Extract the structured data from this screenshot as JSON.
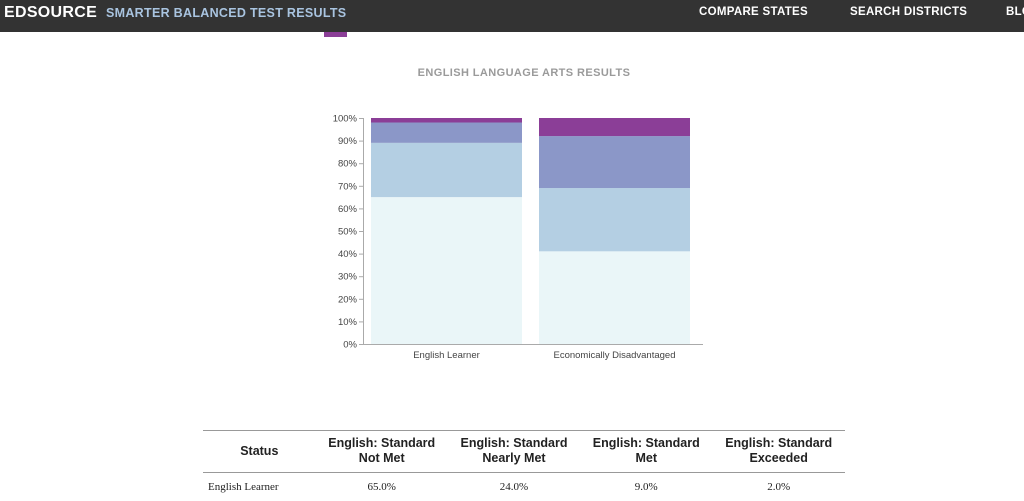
{
  "header": {
    "brand": "EDSOURCE",
    "subtitle": "SMARTER BALANCED TEST RESULTS",
    "nav": [
      "COMPARE STATES",
      "SEARCH DISTRICTS",
      "BLO"
    ]
  },
  "chart_title": "ENGLISH LANGUAGE ARTS RESULTS",
  "colors": {
    "topbar": "#333333",
    "not_met": "#eaf6f8",
    "nearly_met": "#b4cfe3",
    "met": "#8b97c8",
    "exceeded": "#8b3e97"
  },
  "chart_data": {
    "type": "bar",
    "stacked": true,
    "categories": [
      "English Learner",
      "Economically Disadvantaged"
    ],
    "series": [
      {
        "name": "English: Standard Not Met",
        "values": [
          65.0,
          41.0
        ],
        "color": "#eaf6f8"
      },
      {
        "name": "English: Standard Nearly Met",
        "values": [
          24.0,
          28.0
        ],
        "color": "#b4cfe3"
      },
      {
        "name": "English: Standard Met",
        "values": [
          9.0,
          23.0
        ],
        "color": "#8b97c8"
      },
      {
        "name": "English: Standard Exceeded",
        "values": [
          2.0,
          8.0
        ],
        "color": "#8b3e97"
      }
    ],
    "ylim": [
      0,
      100
    ],
    "yticks": [
      "0%",
      "10%",
      "20%",
      "30%",
      "40%",
      "50%",
      "60%",
      "70%",
      "80%",
      "90%",
      "100%"
    ],
    "legend": "none"
  },
  "table": {
    "headers": [
      "Status",
      "English: Standard Not Met",
      "English: Standard Nearly Met",
      "English: Standard Met",
      "English: Standard Exceeded"
    ],
    "rows": [
      [
        "English Learner",
        "65.0%",
        "24.0%",
        "9.0%",
        "2.0%"
      ]
    ]
  }
}
